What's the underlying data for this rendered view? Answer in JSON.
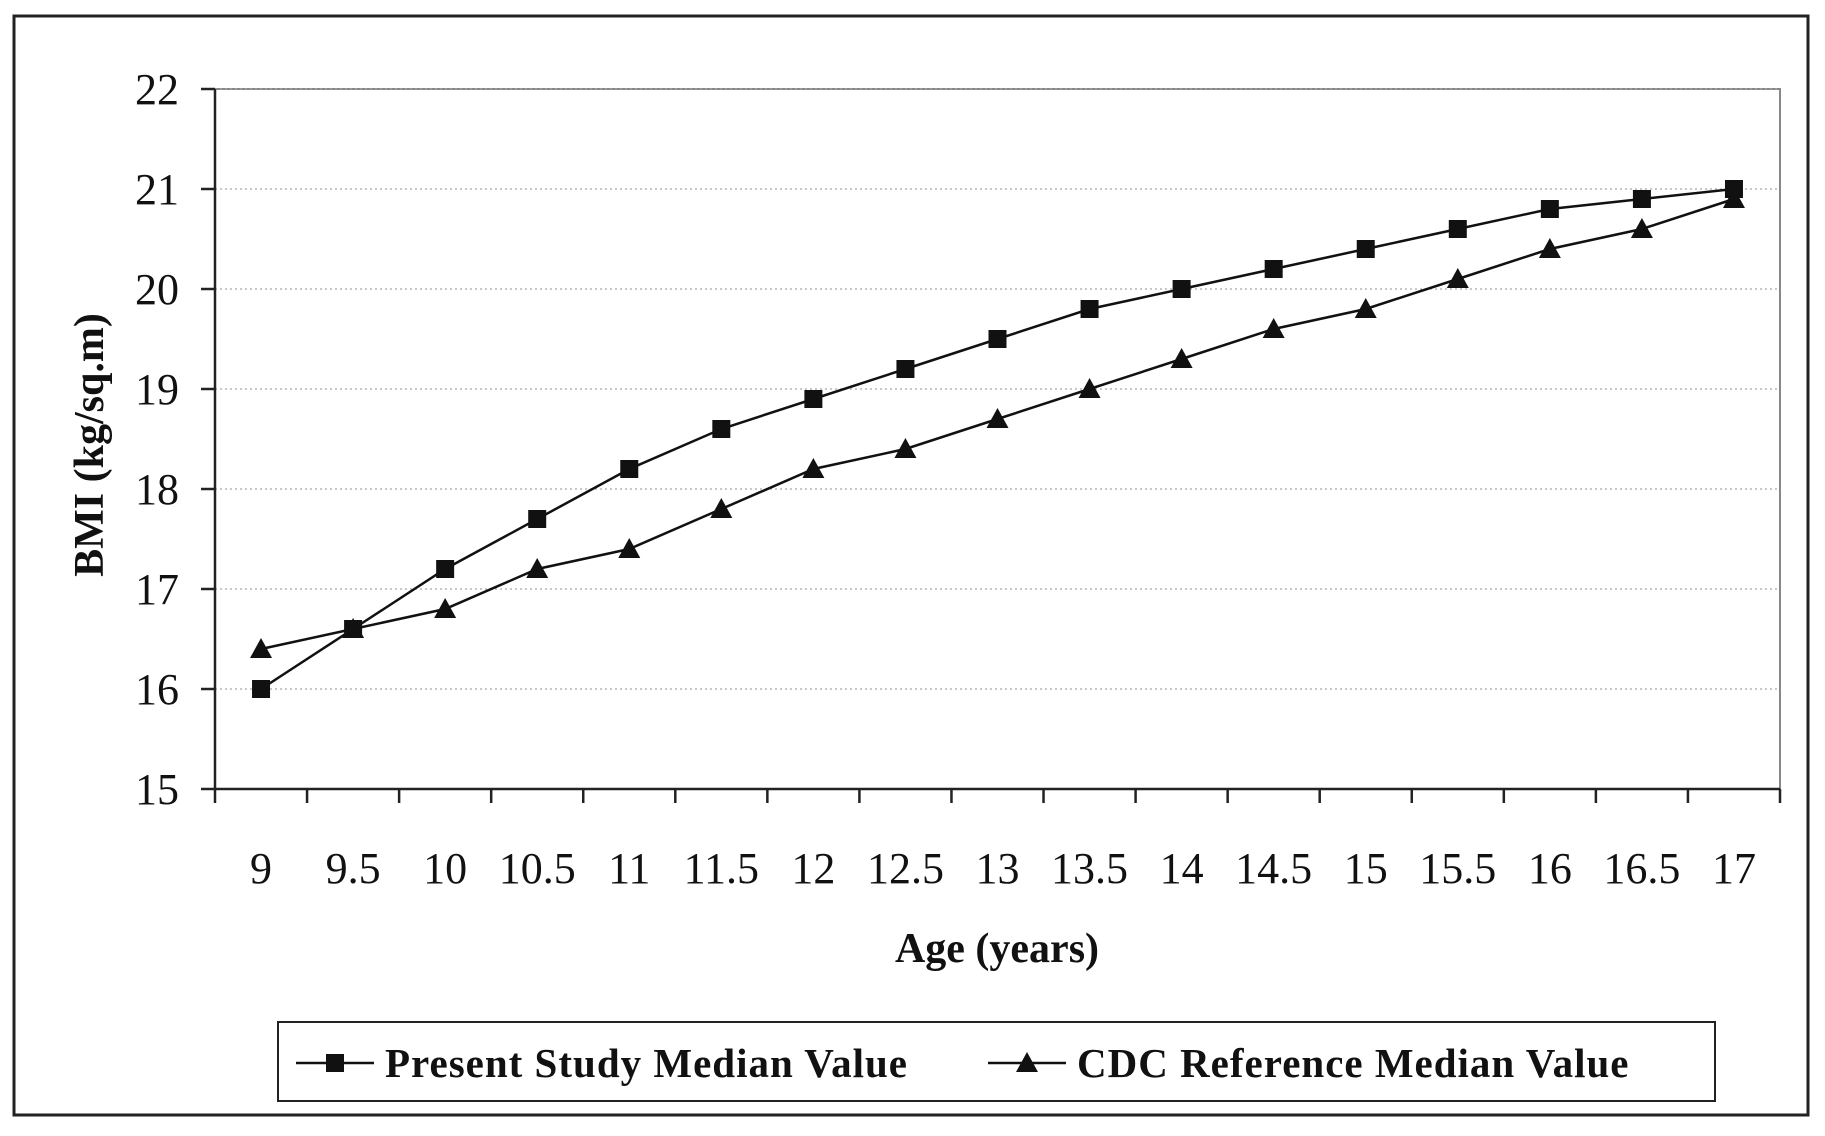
{
  "chart_data": {
    "type": "line",
    "title": "",
    "xlabel": "Age (years)",
    "ylabel": "BMI (kg/sq.m)",
    "x": [
      9,
      9.5,
      10,
      10.5,
      11,
      11.5,
      12,
      12.5,
      13,
      13.5,
      14,
      14.5,
      15,
      15.5,
      16,
      16.5,
      17
    ],
    "x_tick_labels": [
      "9",
      "9.5",
      "10",
      "10.5",
      "11",
      "11.5",
      "12",
      "12.5",
      "13",
      "13.5",
      "14",
      "14.5",
      "15",
      "15.5",
      "16",
      "16.5",
      "17"
    ],
    "y_tick_labels": [
      "15",
      "16",
      "17",
      "18",
      "19",
      "20",
      "21",
      "22"
    ],
    "ylim": [
      15,
      22
    ],
    "grid": "horizontal dotted",
    "legend_position": "bottom",
    "series": [
      {
        "name": "Present Study Median Value",
        "marker": "square",
        "color": "#111111",
        "values": [
          16.0,
          16.6,
          17.2,
          17.7,
          18.2,
          18.6,
          18.9,
          19.2,
          19.5,
          19.8,
          20.0,
          20.2,
          20.4,
          20.6,
          20.8,
          20.9,
          21.0
        ]
      },
      {
        "name": "CDC Reference Median Value",
        "marker": "triangle",
        "color": "#111111",
        "values": [
          16.4,
          16.6,
          16.8,
          17.2,
          17.4,
          17.8,
          18.2,
          18.4,
          18.7,
          19.0,
          19.3,
          19.6,
          19.8,
          20.1,
          20.4,
          20.6,
          20.9
        ]
      }
    ]
  }
}
